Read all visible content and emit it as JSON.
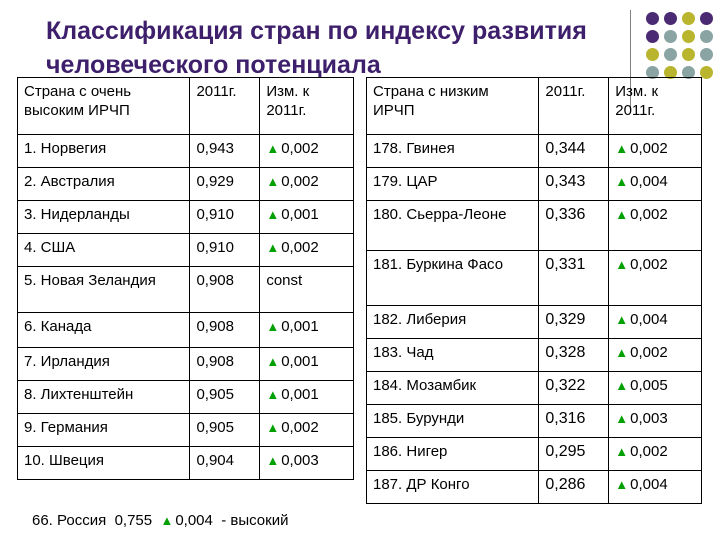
{
  "title": "Классификация стран по индексу развития человеческого потенциала",
  "colors": {
    "title": "#3d1f6b",
    "triangle": "#00a000",
    "dot_purple": "#4a2a72",
    "dot_olive": "#b9b52e",
    "dot_gray": "#8aa3a3"
  },
  "icons": {
    "triangle": "▲"
  },
  "left_table": {
    "headers": [
      "Страна с очень высоким ИРЧП",
      "2011г.",
      "Изм. к 2011г."
    ],
    "rows": [
      {
        "country": "1. Норвегия",
        "value": "0,943",
        "change": "0,002",
        "up": true
      },
      {
        "country": "2. Австралия",
        "value": "0,929",
        "change": "0,002",
        "up": true
      },
      {
        "country": "3. Нидерланды",
        "value": "0,910",
        "change": "0,001",
        "up": true
      },
      {
        "country": "4. США",
        "value": "0,910",
        "change": "0,002",
        "up": true
      },
      {
        "country": "5. Новая Зеландия",
        "value": "0,908",
        "change": "const",
        "up": false
      },
      {
        "country": "6. Канада",
        "value": "0,908",
        "change": "0,001",
        "up": true
      },
      {
        "country": "7. Ирландия",
        "value": "0,908",
        "change": "0,001",
        "up": true
      },
      {
        "country": "8. Лихтенштейн",
        "value": "0,905",
        "change": "0,001",
        "up": true
      },
      {
        "country": "9. Германия",
        "value": "0,905",
        "change": "0,002",
        "up": true
      },
      {
        "country": "10. Швеция",
        "value": "0,904",
        "change": "0,003",
        "up": true
      }
    ]
  },
  "right_table": {
    "headers": [
      "Страна с низким ИРЧП",
      "2011г.",
      "Изм. к 2011г."
    ],
    "rows": [
      {
        "country": "178. Гвинея",
        "value": "0,344",
        "change": "0,002",
        "up": true
      },
      {
        "country": "179. ЦАР",
        "value": "0,343",
        "change": "0,004",
        "up": true
      },
      {
        "country": "180. Сьерра-Леоне",
        "value": "0,336",
        "change": "0,002",
        "up": true
      },
      {
        "country": "181. Буркина Фасо",
        "value": "0,331",
        "change": "0,002",
        "up": true
      },
      {
        "country": "182. Либерия",
        "value": "0,329",
        "change": "0,004",
        "up": true
      },
      {
        "country": "183. Чад",
        "value": "0,328",
        "change": "0,002",
        "up": true
      },
      {
        "country": "184. Мозамбик",
        "value": "0,322",
        "change": "0,005",
        "up": true
      },
      {
        "country": "185. Бурунди",
        "value": "0,316",
        "change": "0,003",
        "up": true
      },
      {
        "country": "186. Нигер",
        "value": "0,295",
        "change": "0,002",
        "up": true
      },
      {
        "country": "187. ДР Конго",
        "value": "0,286",
        "change": "0,004",
        "up": true
      }
    ]
  },
  "footer": {
    "country": "66. Россия",
    "value": "0,755",
    "change": "0,004",
    "label": "- высокий"
  }
}
